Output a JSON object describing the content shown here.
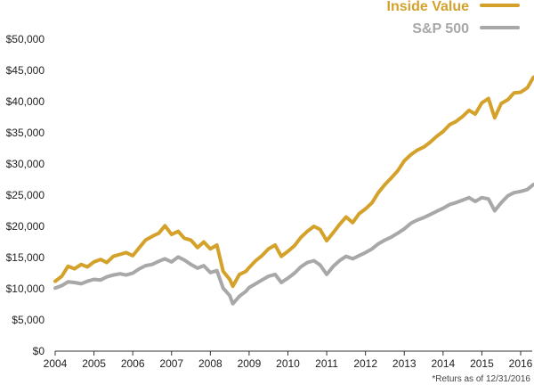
{
  "chart_data": {
    "type": "line",
    "title": "",
    "xlabel": "",
    "ylabel": "",
    "xlim": [
      2004,
      2016.33
    ],
    "ylim": [
      0,
      50000
    ],
    "grid": false,
    "legend_position": "top-right",
    "x_ticks": [
      2004,
      2005,
      2006,
      2007,
      2008,
      2009,
      2010,
      2011,
      2012,
      2013,
      2014,
      2015,
      2016
    ],
    "x_tick_labels": [
      "2004",
      "2005",
      "2006",
      "2007",
      "2008",
      "2009",
      "2010",
      "2011",
      "2012",
      "2013",
      "2014",
      "2015",
      "2016"
    ],
    "y_ticks": [
      0,
      5000,
      10000,
      15000,
      20000,
      25000,
      30000,
      35000,
      40000,
      45000,
      50000
    ],
    "y_tick_labels": [
      "$0",
      "$5,000",
      "$10,000",
      "$15,000",
      "$20,000",
      "$25,000",
      "$30,000",
      "$35,000",
      "$40,000",
      "$45,000",
      "$50,000"
    ],
    "footnote": "*Returs as of 12/31/2016",
    "series": [
      {
        "name": "Inside Value",
        "color": "#d4a22a",
        "points": [
          [
            2004.0,
            11200
          ],
          [
            2004.17,
            12000
          ],
          [
            2004.33,
            13600
          ],
          [
            2004.5,
            13200
          ],
          [
            2004.67,
            13900
          ],
          [
            2004.83,
            13500
          ],
          [
            2005.0,
            14300
          ],
          [
            2005.17,
            14700
          ],
          [
            2005.33,
            14200
          ],
          [
            2005.5,
            15200
          ],
          [
            2005.67,
            15500
          ],
          [
            2005.83,
            15800
          ],
          [
            2006.0,
            15300
          ],
          [
            2006.17,
            16600
          ],
          [
            2006.33,
            17800
          ],
          [
            2006.5,
            18400
          ],
          [
            2006.67,
            18900
          ],
          [
            2006.83,
            20100
          ],
          [
            2007.0,
            18700
          ],
          [
            2007.17,
            19200
          ],
          [
            2007.33,
            18100
          ],
          [
            2007.5,
            17800
          ],
          [
            2007.67,
            16600
          ],
          [
            2007.83,
            17500
          ],
          [
            2008.0,
            16400
          ],
          [
            2008.17,
            17000
          ],
          [
            2008.33,
            12800
          ],
          [
            2008.5,
            11500
          ],
          [
            2008.58,
            10400
          ],
          [
            2008.75,
            12300
          ],
          [
            2008.92,
            12800
          ],
          [
            2009.0,
            13400
          ],
          [
            2009.17,
            14500
          ],
          [
            2009.33,
            15300
          ],
          [
            2009.5,
            16400
          ],
          [
            2009.67,
            17000
          ],
          [
            2009.83,
            15200
          ],
          [
            2010.0,
            16000
          ],
          [
            2010.17,
            16900
          ],
          [
            2010.33,
            18200
          ],
          [
            2010.5,
            19200
          ],
          [
            2010.67,
            20000
          ],
          [
            2010.83,
            19500
          ],
          [
            2011.0,
            17700
          ],
          [
            2011.17,
            19000
          ],
          [
            2011.33,
            20300
          ],
          [
            2011.5,
            21500
          ],
          [
            2011.67,
            20600
          ],
          [
            2011.83,
            22000
          ],
          [
            2012.0,
            22800
          ],
          [
            2012.17,
            23800
          ],
          [
            2012.33,
            25400
          ],
          [
            2012.5,
            26700
          ],
          [
            2012.67,
            27800
          ],
          [
            2012.83,
            28900
          ],
          [
            2013.0,
            30500
          ],
          [
            2013.17,
            31500
          ],
          [
            2013.33,
            32200
          ],
          [
            2013.5,
            32700
          ],
          [
            2013.67,
            33500
          ],
          [
            2013.83,
            34400
          ],
          [
            2014.0,
            35200
          ],
          [
            2014.17,
            36300
          ],
          [
            2014.33,
            36800
          ],
          [
            2014.5,
            37600
          ],
          [
            2014.67,
            38600
          ],
          [
            2014.83,
            38000
          ],
          [
            2015.0,
            39800
          ],
          [
            2015.17,
            40500
          ],
          [
            2015.33,
            37400
          ],
          [
            2015.5,
            39700
          ],
          [
            2015.67,
            40300
          ],
          [
            2015.83,
            41400
          ],
          [
            2016.0,
            41500
          ],
          [
            2016.17,
            42200
          ],
          [
            2016.33,
            43900
          ]
        ]
      },
      {
        "name": "S&P 500",
        "color": "#a8a8a8",
        "points": [
          [
            2004.0,
            10100
          ],
          [
            2004.17,
            10500
          ],
          [
            2004.33,
            11100
          ],
          [
            2004.5,
            11000
          ],
          [
            2004.67,
            10800
          ],
          [
            2004.83,
            11200
          ],
          [
            2005.0,
            11500
          ],
          [
            2005.17,
            11400
          ],
          [
            2005.33,
            11900
          ],
          [
            2005.5,
            12200
          ],
          [
            2005.67,
            12400
          ],
          [
            2005.83,
            12200
          ],
          [
            2006.0,
            12500
          ],
          [
            2006.17,
            13200
          ],
          [
            2006.33,
            13700
          ],
          [
            2006.5,
            13900
          ],
          [
            2006.67,
            14400
          ],
          [
            2006.83,
            14800
          ],
          [
            2007.0,
            14300
          ],
          [
            2007.17,
            15100
          ],
          [
            2007.33,
            14600
          ],
          [
            2007.5,
            13900
          ],
          [
            2007.67,
            13300
          ],
          [
            2007.83,
            13700
          ],
          [
            2008.0,
            12600
          ],
          [
            2008.17,
            12900
          ],
          [
            2008.33,
            10100
          ],
          [
            2008.5,
            8900
          ],
          [
            2008.58,
            7600
          ],
          [
            2008.75,
            8800
          ],
          [
            2008.92,
            9600
          ],
          [
            2009.0,
            10200
          ],
          [
            2009.17,
            10800
          ],
          [
            2009.33,
            11400
          ],
          [
            2009.5,
            12000
          ],
          [
            2009.67,
            12300
          ],
          [
            2009.83,
            11000
          ],
          [
            2010.0,
            11700
          ],
          [
            2010.17,
            12500
          ],
          [
            2010.33,
            13500
          ],
          [
            2010.5,
            14200
          ],
          [
            2010.67,
            14500
          ],
          [
            2010.83,
            13800
          ],
          [
            2011.0,
            12300
          ],
          [
            2011.17,
            13600
          ],
          [
            2011.33,
            14500
          ],
          [
            2011.5,
            15200
          ],
          [
            2011.67,
            14800
          ],
          [
            2011.83,
            15300
          ],
          [
            2012.0,
            15800
          ],
          [
            2012.17,
            16400
          ],
          [
            2012.33,
            17200
          ],
          [
            2012.5,
            17800
          ],
          [
            2012.67,
            18300
          ],
          [
            2012.83,
            18900
          ],
          [
            2013.0,
            19600
          ],
          [
            2013.17,
            20500
          ],
          [
            2013.33,
            21000
          ],
          [
            2013.5,
            21400
          ],
          [
            2013.67,
            21900
          ],
          [
            2013.83,
            22400
          ],
          [
            2014.0,
            22900
          ],
          [
            2014.17,
            23500
          ],
          [
            2014.33,
            23800
          ],
          [
            2014.5,
            24200
          ],
          [
            2014.67,
            24600
          ],
          [
            2014.83,
            24000
          ],
          [
            2015.0,
            24600
          ],
          [
            2015.17,
            24400
          ],
          [
            2015.33,
            22500
          ],
          [
            2015.5,
            23800
          ],
          [
            2015.67,
            24900
          ],
          [
            2015.83,
            25400
          ],
          [
            2016.0,
            25600
          ],
          [
            2016.17,
            25900
          ],
          [
            2016.33,
            26700
          ]
        ]
      }
    ]
  }
}
